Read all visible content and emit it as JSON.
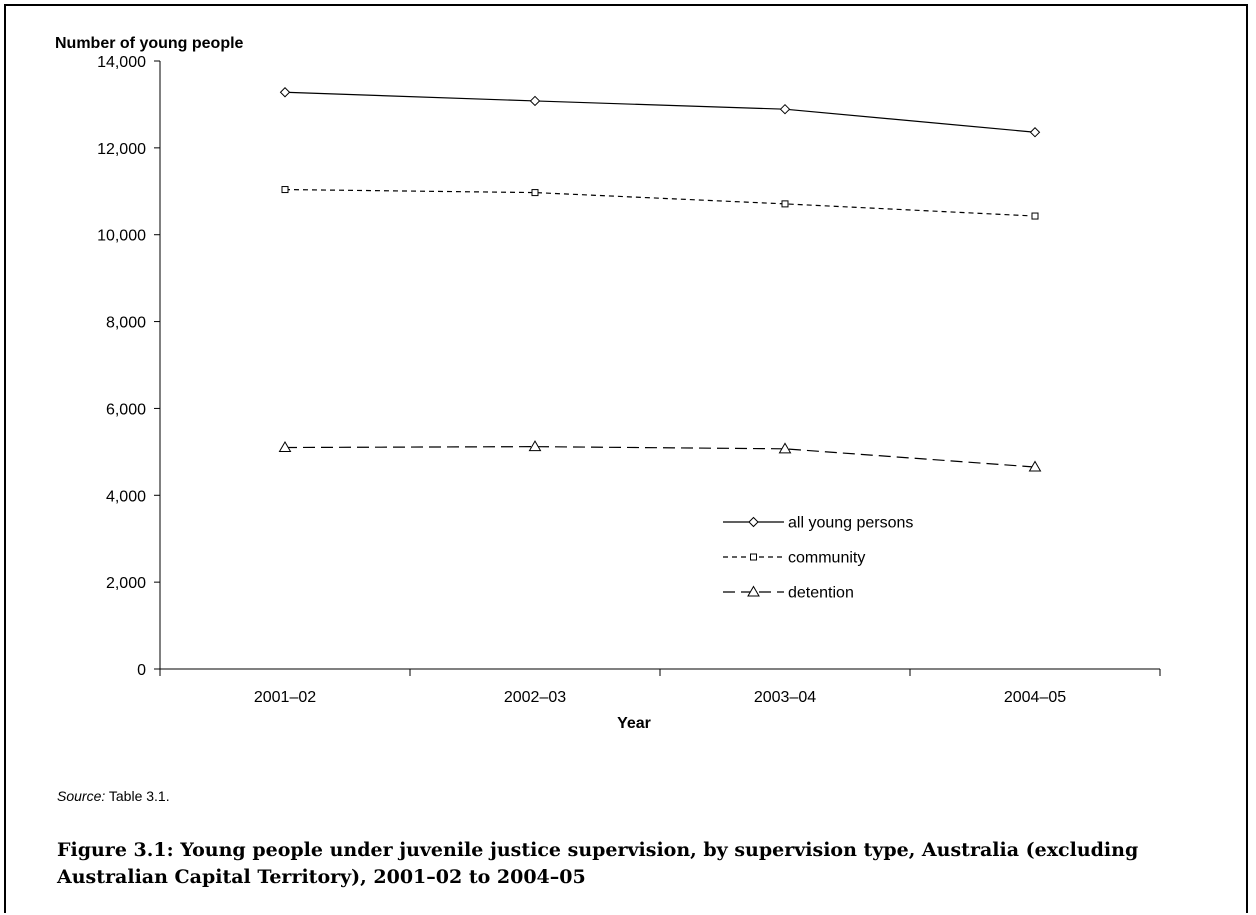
{
  "chart_data": {
    "type": "line",
    "title": "",
    "xlabel": "Year",
    "ylabel": "Number of young people",
    "categories": [
      "2001–02",
      "2002–03",
      "2003–04",
      "2004–05"
    ],
    "ylim": [
      0,
      14000
    ],
    "yticks": [
      0,
      2000,
      4000,
      6000,
      8000,
      10000,
      12000,
      14000
    ],
    "ytick_labels": [
      "0",
      "2,000",
      "4,000",
      "6,000",
      "8,000",
      "10,000",
      "12,000",
      "14,000"
    ],
    "grid": false,
    "legend_position": "center-right",
    "series": [
      {
        "name": "all young persons",
        "values": [
          13280,
          13080,
          12890,
          12360
        ],
        "style": "solid",
        "marker": "diamond"
      },
      {
        "name": "community",
        "values": [
          11040,
          10970,
          10710,
          10430
        ],
        "style": "short-dash",
        "marker": "square"
      },
      {
        "name": "detention",
        "values": [
          5100,
          5120,
          5070,
          4650
        ],
        "style": "long-dash",
        "marker": "triangle"
      }
    ]
  },
  "source": {
    "label": "Source:",
    "text": " Table 3.1."
  },
  "caption": "Figure 3.1: Young people under juvenile justice supervision, by supervision type, Australia (excluding Australian Capital Territory), 2001–02 to 2004–05"
}
